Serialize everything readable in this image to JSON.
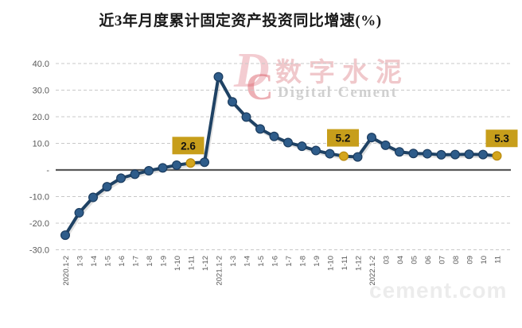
{
  "title": "近3年月度累计固定资产投资同比增速(%)",
  "watermark": {
    "logo_d": "D",
    "logo_c": "C",
    "cn": "数字水泥",
    "en": "Digital Cement",
    "bottom": "cement.com"
  },
  "chart_data": {
    "type": "line",
    "title": "近3年月度累计固定资产投资同比增速(%)",
    "xlabel": "",
    "ylabel": "",
    "categories": [
      "2020.1-2",
      "1-3",
      "1-4",
      "1-5",
      "1-6",
      "1-7",
      "1-8",
      "1-9",
      "1-10",
      "1-11",
      "1-12",
      "2021.1-2",
      "1-3",
      "1-4",
      "1-5",
      "1-6",
      "1-7",
      "1-8",
      "1-9",
      "1-10",
      "1-11",
      "1-12",
      "2022.1-2",
      "03",
      "04",
      "05",
      "06",
      "07",
      "08",
      "09",
      "10",
      "11"
    ],
    "values": [
      -24.5,
      -16.1,
      -10.3,
      -6.3,
      -3.1,
      -1.6,
      -0.3,
      0.8,
      1.8,
      2.6,
      2.9,
      35.0,
      25.6,
      19.9,
      15.4,
      12.6,
      10.3,
      8.9,
      7.3,
      6.1,
      5.2,
      4.9,
      12.2,
      9.3,
      6.8,
      6.2,
      6.1,
      5.7,
      5.8,
      5.9,
      5.8,
      5.3
    ],
    "ylim": [
      -30,
      40
    ],
    "yticks": [
      40,
      30,
      20,
      10,
      0,
      -10,
      -20,
      -30
    ],
    "ytick_labels": [
      "40.0",
      "30.0",
      "20.0",
      "10.0",
      "-",
      "-10.0",
      "-20.0",
      "-30.0"
    ],
    "grid": "horizontal-dashed",
    "legend": "none",
    "highlight_indices": [
      9,
      20,
      31
    ],
    "callouts": [
      {
        "index": 9,
        "label": "2.6"
      },
      {
        "index": 20,
        "label": "5.2"
      },
      {
        "index": 31,
        "label": "5.3"
      }
    ]
  },
  "colors": {
    "line": "#1F4264",
    "line_shadow": "#9a9a9a",
    "marker": "#2E5C8A",
    "marker_border": "#1B3C5F",
    "highlight": "#D4A51C",
    "highlight_border": "#B8890D",
    "callout_bg": "#C79E1B",
    "callout_text": "#111111",
    "grid": "#C8C8C8",
    "zero_line": "#595959",
    "axis_text": "#595959",
    "title": "#1A1A1A"
  }
}
